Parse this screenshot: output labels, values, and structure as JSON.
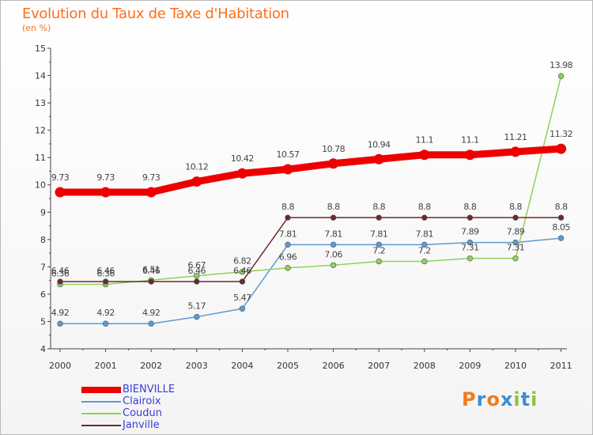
{
  "title": "Evolution du Taux de Taxe d'Habitation",
  "subtitle": "(en %)",
  "brand": "Proxiti",
  "brand_colors": [
    "#f07c1a",
    "#3a8fd4",
    "#f07c1a",
    "#3a8fd4",
    "#8bc43f",
    "#3a8fd4",
    "#8bc43f"
  ],
  "chart_data": {
    "type": "line",
    "title": "Evolution du Taux de Taxe d'Habitation",
    "subtitle": "(en %)",
    "xlabel": "",
    "ylabel": "",
    "x": [
      "2000",
      "2001",
      "2002",
      "2003",
      "2004",
      "2005",
      "2006",
      "2007",
      "2008",
      "2009",
      "2010",
      "2011"
    ],
    "ylim": [
      4,
      15
    ],
    "yticks": [
      4,
      5,
      6,
      7,
      8,
      9,
      10,
      11,
      12,
      13,
      14,
      15
    ],
    "grid": false,
    "legend_position": "bottom-left",
    "series": [
      {
        "name": "BIENVILLE",
        "color": "#ee0000",
        "values": [
          9.73,
          9.73,
          9.73,
          10.12,
          10.42,
          10.57,
          10.78,
          10.94,
          11.1,
          11.1,
          11.21,
          11.32
        ],
        "labels": [
          "9.73",
          "9.73",
          "9.73",
          "10.12",
          "10.42",
          "10.57",
          "10.78",
          "10.94",
          "11.1",
          "11.1",
          "11.21",
          "11.32"
        ]
      },
      {
        "name": "Clairoix",
        "color": "#5b9bd5",
        "values": [
          4.92,
          4.92,
          4.92,
          5.17,
          5.47,
          7.81,
          7.81,
          7.81,
          7.81,
          7.89,
          7.89,
          8.05
        ],
        "labels": [
          "4.92",
          "4.92",
          "4.92",
          "5.17",
          "5.47",
          "7.81",
          "7.81",
          "7.81",
          "7.81",
          "7.89",
          "7.89",
          "8.05"
        ]
      },
      {
        "name": "Coudun",
        "color": "#8fd15a",
        "values": [
          6.36,
          6.36,
          6.51,
          6.67,
          6.82,
          6.96,
          7.06,
          7.2,
          7.2,
          7.31,
          7.31,
          13.98
        ],
        "labels": [
          "6.36",
          "6.36",
          "6.51",
          "6.67",
          "6.82",
          "6.96",
          "7.06",
          "7.2",
          "7.2",
          "7.31",
          "7.31",
          "13.98"
        ]
      },
      {
        "name": "Janville",
        "color": "#6e2a2a",
        "values": [
          6.46,
          6.46,
          6.46,
          6.46,
          6.46,
          8.8,
          8.8,
          8.8,
          8.8,
          8.8,
          8.8,
          8.8
        ],
        "labels": [
          "6.46",
          "6.46",
          "6.46",
          "6.46",
          "6.46",
          "8.8",
          "8.8",
          "8.8",
          "8.8",
          "8.8",
          "8.8",
          "8.8"
        ]
      }
    ]
  }
}
